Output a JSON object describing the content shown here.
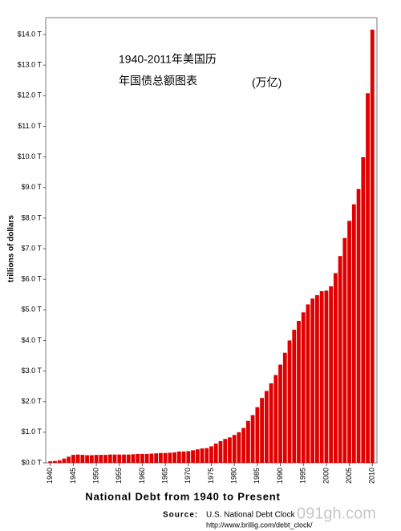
{
  "chart_data": {
    "type": "bar",
    "title": "National Debt from 1940 to Present",
    "ylabel": "trillions of dollars",
    "annotations": [
      "1940-2011年美国历",
      "年国债总额图表",
      "(万亿)"
    ],
    "source_label": "Source:",
    "source": "U.S. National Debt Clock",
    "source_url": "http://www.brillig.com/debt_clock/",
    "watermark": "091gh.com",
    "color": "#e00000",
    "x": [
      1940,
      1941,
      1942,
      1943,
      1944,
      1945,
      1946,
      1947,
      1948,
      1949,
      1950,
      1951,
      1952,
      1953,
      1954,
      1955,
      1956,
      1957,
      1958,
      1959,
      1960,
      1961,
      1962,
      1963,
      1964,
      1965,
      1966,
      1967,
      1968,
      1969,
      1970,
      1971,
      1972,
      1973,
      1974,
      1975,
      1976,
      1977,
      1978,
      1979,
      1980,
      1981,
      1982,
      1983,
      1984,
      1985,
      1986,
      1987,
      1988,
      1989,
      1990,
      1991,
      1992,
      1993,
      1994,
      1995,
      1996,
      1997,
      1998,
      1999,
      2000,
      2001,
      2002,
      2003,
      2004,
      2005,
      2006,
      2007,
      2008,
      2009,
      2010
    ],
    "values": [
      0.05,
      0.06,
      0.08,
      0.14,
      0.2,
      0.26,
      0.27,
      0.26,
      0.25,
      0.25,
      0.26,
      0.26,
      0.26,
      0.27,
      0.27,
      0.27,
      0.27,
      0.27,
      0.28,
      0.29,
      0.29,
      0.29,
      0.3,
      0.31,
      0.32,
      0.32,
      0.33,
      0.34,
      0.37,
      0.37,
      0.38,
      0.41,
      0.44,
      0.47,
      0.48,
      0.54,
      0.63,
      0.71,
      0.78,
      0.83,
      0.91,
      1.0,
      1.14,
      1.37,
      1.56,
      1.82,
      2.12,
      2.35,
      2.6,
      2.87,
      3.21,
      3.6,
      4.0,
      4.35,
      4.64,
      4.92,
      5.18,
      5.37,
      5.48,
      5.61,
      5.63,
      5.77,
      6.2,
      6.76,
      7.35,
      7.91,
      8.45,
      8.95,
      9.99,
      12.08,
      14.16
    ],
    "xlim": [
      1939,
      2011
    ],
    "xticks": [
      1940,
      1945,
      1950,
      1955,
      1960,
      1965,
      1970,
      1975,
      1980,
      1985,
      1990,
      1995,
      2000,
      2005,
      2010
    ],
    "ylim": [
      0,
      14.5
    ],
    "yticks": [
      {
        "value": 0,
        "label": "$0.0 T"
      },
      {
        "value": 1,
        "label": "$1.0 T"
      },
      {
        "value": 2,
        "label": "$2.0 T"
      },
      {
        "value": 3,
        "label": "$3.0 T"
      },
      {
        "value": 4,
        "label": "$4.0 T"
      },
      {
        "value": 5,
        "label": "$5.0 T"
      },
      {
        "value": 6,
        "label": "$6.0 T"
      },
      {
        "value": 7,
        "label": "$7.0 T"
      },
      {
        "value": 8,
        "label": "$8.0 T"
      },
      {
        "value": 9,
        "label": "$9.0 T"
      },
      {
        "value": 10,
        "label": "$10.0 T"
      },
      {
        "value": 11,
        "label": "$11.0 T"
      },
      {
        "value": 12,
        "label": "$12.0 T"
      },
      {
        "value": 13,
        "label": "$13.0 T"
      },
      {
        "value": 14,
        "label": "$14.0 T"
      }
    ],
    "grid": false
  }
}
